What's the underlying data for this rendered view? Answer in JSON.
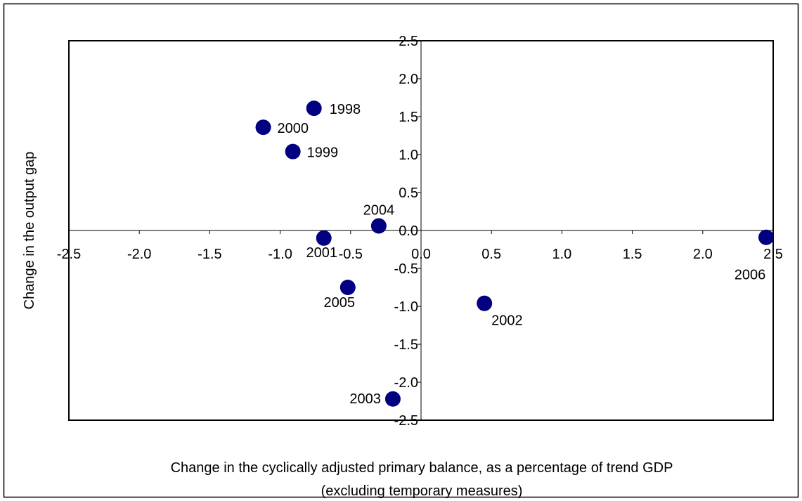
{
  "chart_data": {
    "type": "scatter",
    "x_label": "Change in the cyclically adjusted primary balance, as a percentage of trend GDP",
    "x_label_line2": "(excluding temporary measures)",
    "y_label": "Change in the output gap",
    "color": "#000080",
    "x": [
      -0.76,
      -0.91,
      -1.12,
      -0.69,
      0.45,
      -0.2,
      -0.3,
      -0.52,
      2.45
    ],
    "values": [
      1.61,
      1.04,
      1.36,
      -0.1,
      -0.96,
      -2.22,
      0.06,
      -0.75,
      -0.09
    ],
    "point_labels": [
      "1998",
      "1999",
      "2000",
      "2001",
      "2002",
      "2003",
      "2004",
      "2005",
      "2006"
    ],
    "xlim": [
      -2.5,
      2.5
    ],
    "ylim": [
      -2.5,
      2.5
    ],
    "xticks": [
      -2.5,
      {
        "value": -2,
        "label": "-2.0"
      },
      -1.5,
      {
        "value": -1,
        "label": "-1.0"
      },
      -0.5,
      {
        "value": 0,
        "label": "0.0"
      },
      0.5,
      {
        "value": 1,
        "label": "1.0"
      },
      1.5,
      {
        "value": 2,
        "label": "2.0"
      },
      2.5
    ],
    "yticks": [
      -2.5,
      {
        "value": -2,
        "label": "-2.0"
      },
      -1.5,
      {
        "value": -1,
        "label": "-1.0"
      },
      -0.5,
      {
        "value": 0,
        "label": "0.0"
      },
      0.5,
      {
        "value": 1,
        "label": "1.0"
      },
      1.5,
      {
        "value": 2,
        "label": "2.0"
      },
      2.5
    ]
  }
}
